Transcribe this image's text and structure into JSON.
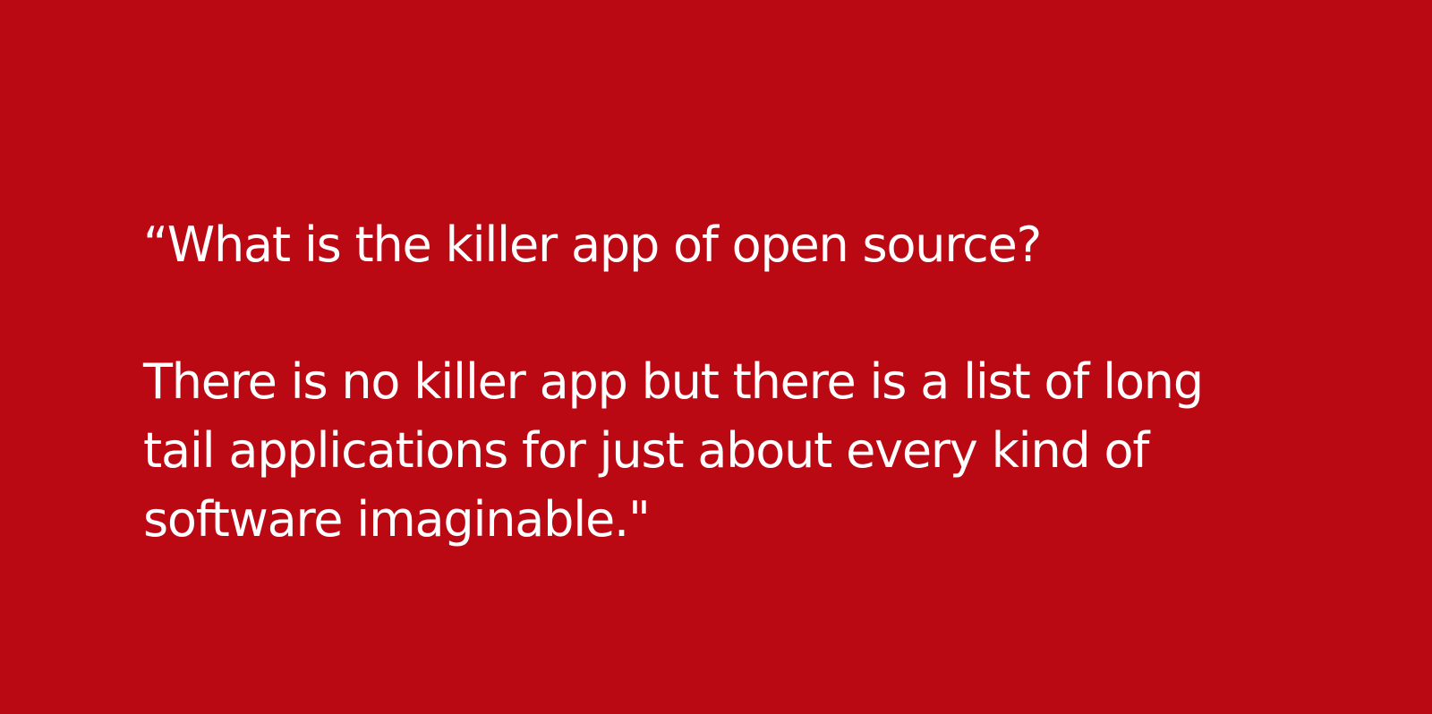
{
  "slide": {
    "background_color": "#bb0914",
    "text_color": "#ffffff",
    "quote": {
      "question": "“What is the killer app of open source?",
      "answer_lines": [
        "There is no killer app but there is a list of long",
        "tail applications for just about every kind of",
        "software imaginable.\""
      ]
    }
  }
}
